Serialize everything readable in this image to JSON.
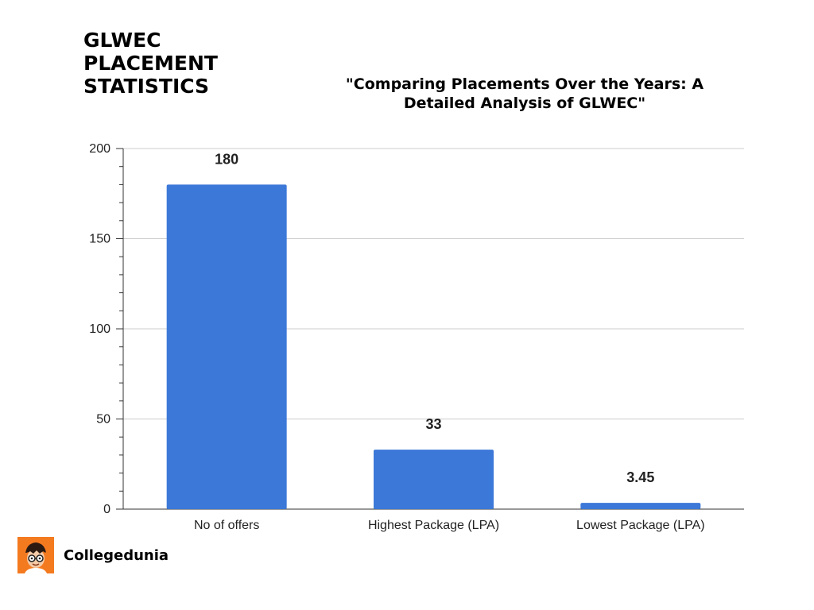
{
  "header": {
    "title_lines": [
      "GLWEC",
      "PLACEMENT",
      "STATISTICS"
    ],
    "subtitle_lines": [
      "\"Comparing Placements Over the Years: A",
      "Detailed Analysis of  GLWEC\""
    ]
  },
  "chart_data": {
    "type": "bar",
    "categories": [
      "No of offers",
      "Highest Package (LPA)",
      "Lowest Package (LPA)"
    ],
    "values": [
      180,
      33,
      3.45
    ],
    "value_labels": [
      "180",
      "33",
      "3.45"
    ],
    "title": "",
    "xlabel": "",
    "ylabel": "",
    "ylim": [
      0,
      200
    ],
    "yticks": [
      0,
      50,
      100,
      150,
      200
    ],
    "grid": true,
    "legend": "none",
    "bar_color": "#3c78d8"
  },
  "brand": {
    "name": "Collegedunia",
    "logo_icon": "student-avatar-icon",
    "logo_color": "#f47a20"
  }
}
